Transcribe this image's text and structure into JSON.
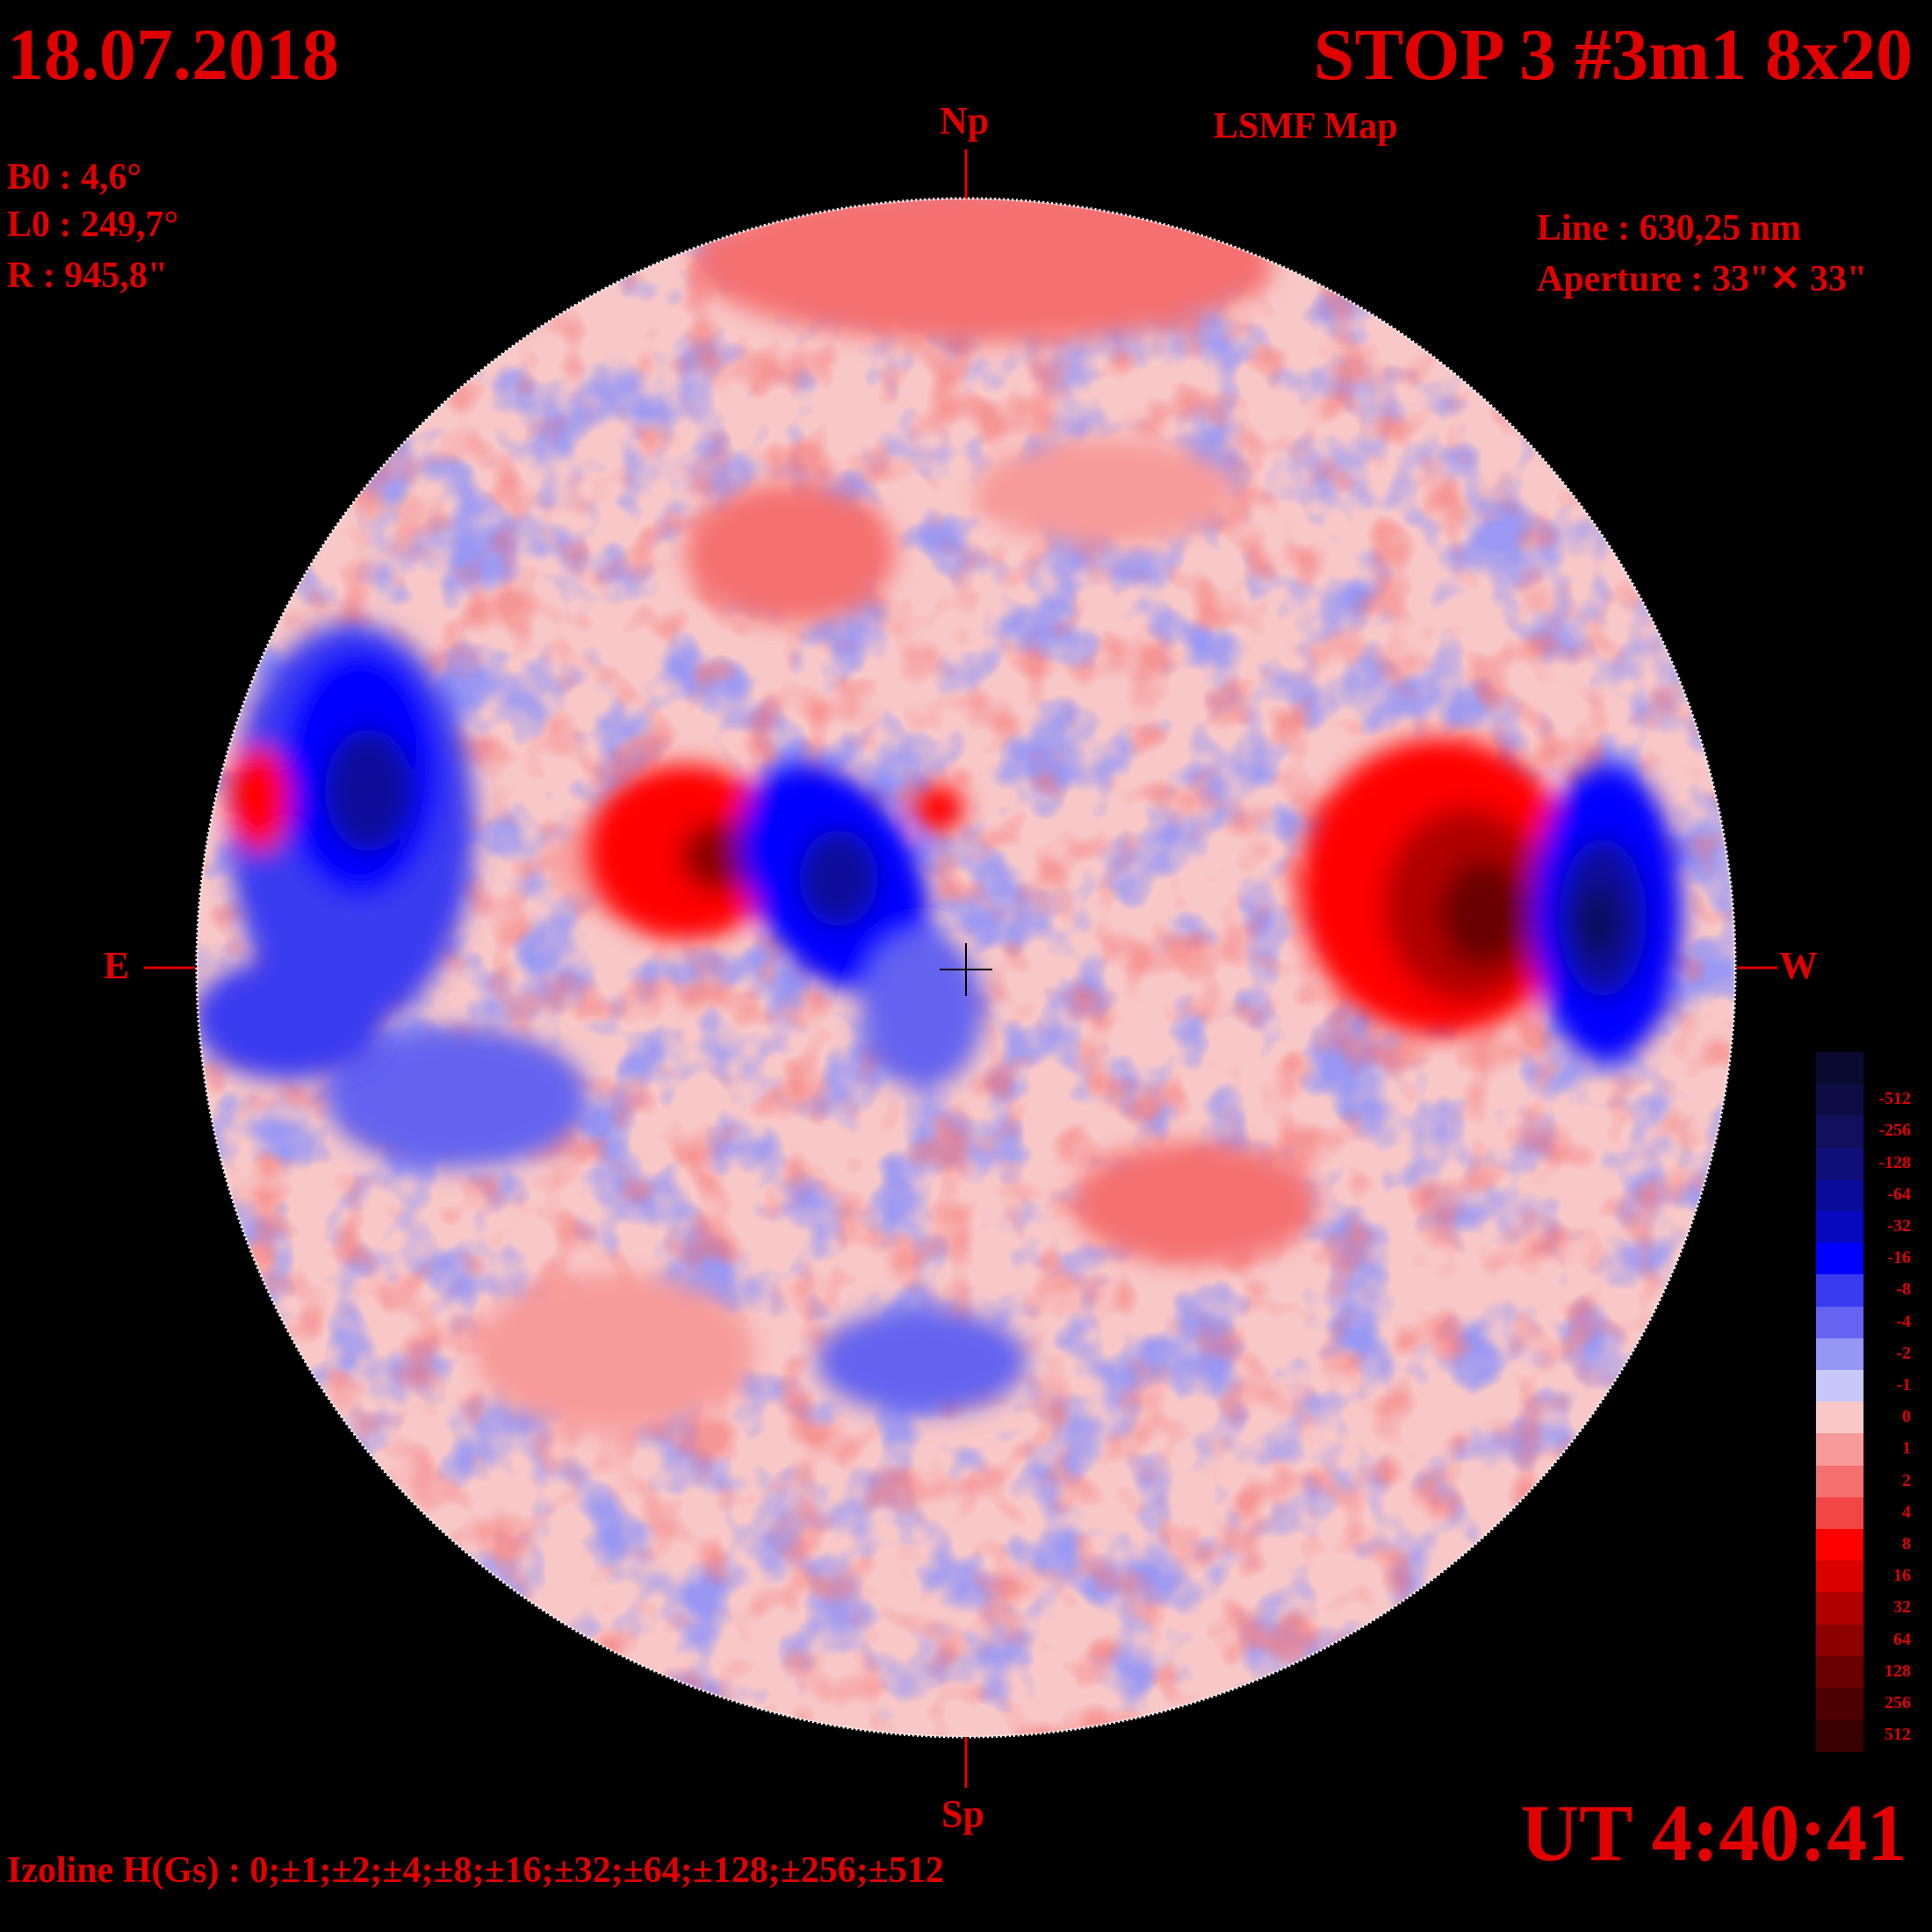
{
  "header": {
    "date": "18.07.2018",
    "title": "STOP 3 #3m1 8x20",
    "subtitle": "LSMF  Map"
  },
  "params": {
    "b0": "B0 : 4,6°",
    "l0": "L0 : 249,7°",
    "r": "R  : 945,8\""
  },
  "instrument": {
    "line": "Line :  630,25 nm",
    "aperture": "Aperture : 33\"✕ 33\""
  },
  "compass": {
    "north": "Np",
    "south": "Sp",
    "east": "E",
    "west": "W"
  },
  "footer": {
    "izoline": "Izoline H(Gs) : 0;±1;±2;±4;±8;±16;±32;±64;±128;±256;±512",
    "ut": "UT 4:40:41"
  },
  "legend": {
    "levels": [
      {
        "label": "",
        "color": "#0a0a30"
      },
      {
        "label": "-512",
        "color": "#0d0d45"
      },
      {
        "label": "-256",
        "color": "#10105c"
      },
      {
        "label": "-128",
        "color": "#101078"
      },
      {
        "label": "-64",
        "color": "#0c0c9a"
      },
      {
        "label": "-32",
        "color": "#0808bf"
      },
      {
        "label": "-16",
        "color": "#0000ff"
      },
      {
        "label": "-8",
        "color": "#3a3af0"
      },
      {
        "label": "-4",
        "color": "#6464f0"
      },
      {
        "label": "-2",
        "color": "#9696f5"
      },
      {
        "label": "-1",
        "color": "#c8c8f8"
      },
      {
        "label": "0",
        "color": "#f8c8c8"
      },
      {
        "label": "1",
        "color": "#f79a9a"
      },
      {
        "label": "2",
        "color": "#f57070"
      },
      {
        "label": "4",
        "color": "#f24646"
      },
      {
        "label": "8",
        "color": "#ff0000"
      },
      {
        "label": "16",
        "color": "#d80000"
      },
      {
        "label": "32",
        "color": "#b00000"
      },
      {
        "label": "64",
        "color": "#8c0000"
      },
      {
        "label": "128",
        "color": "#6a0000"
      },
      {
        "label": "256",
        "color": "#4e0000"
      },
      {
        "label": "512",
        "color": "#380000"
      }
    ]
  },
  "map": {
    "regions": [
      {
        "name": "west-limb-positive",
        "polarity": "positive",
        "level": 64
      },
      {
        "name": "west-limb-negative",
        "polarity": "negative",
        "level": -128
      },
      {
        "name": "central-negative",
        "polarity": "negative",
        "level": -64
      },
      {
        "name": "central-positive",
        "polarity": "positive",
        "level": 32
      },
      {
        "name": "east-limb-negative",
        "polarity": "negative",
        "level": -64
      },
      {
        "name": "east-limb-positive",
        "polarity": "positive",
        "level": 16
      },
      {
        "name": "north-positive",
        "polarity": "positive",
        "level": 4
      }
    ]
  }
}
